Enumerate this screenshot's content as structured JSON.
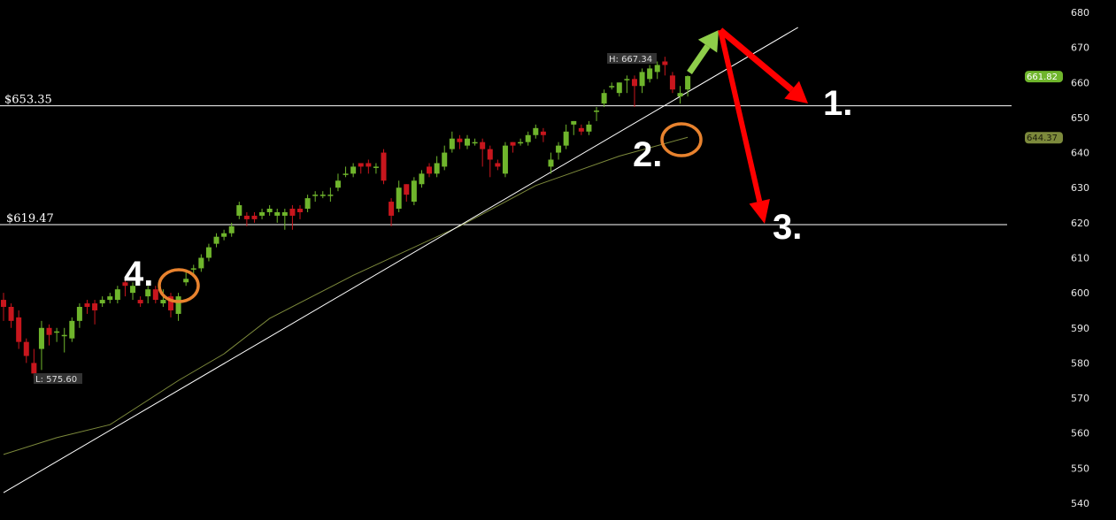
{
  "chart_data": {
    "type": "candlestick",
    "title": "",
    "xlabel": "",
    "ylabel": "",
    "ylim": [
      540,
      680
    ],
    "yticks": [
      680,
      670,
      660,
      650,
      640,
      630,
      620,
      610,
      600,
      590,
      580,
      570,
      560,
      550,
      540
    ],
    "grid": false,
    "up_color": "#6fb52c",
    "down_color": "#c8161d",
    "candles_ohlc": [
      [
        598,
        600,
        592,
        596
      ],
      [
        596,
        597,
        590,
        592
      ],
      [
        593,
        595,
        584,
        586
      ],
      [
        586,
        587,
        580,
        582
      ],
      [
        580,
        584,
        575.6,
        577
      ],
      [
        584,
        592,
        578,
        590
      ],
      [
        590,
        591,
        585,
        588
      ],
      [
        589,
        590,
        586,
        589
      ],
      [
        588,
        590,
        583,
        588
      ],
      [
        587,
        593,
        586,
        592
      ],
      [
        592,
        597,
        590,
        596
      ],
      [
        597,
        598,
        594,
        596
      ],
      [
        597,
        598,
        591,
        595
      ],
      [
        597,
        599,
        596,
        598
      ],
      [
        598,
        600,
        597,
        599
      ],
      [
        598,
        602,
        597,
        601
      ],
      [
        603,
        604,
        599,
        602
      ],
      [
        600,
        603,
        598,
        602
      ],
      [
        598,
        599,
        596,
        597
      ],
      [
        599,
        602,
        597,
        601
      ],
      [
        601,
        602,
        597,
        598
      ],
      [
        597,
        601,
        596,
        598
      ],
      [
        599,
        600,
        593,
        595
      ],
      [
        594,
        600,
        592,
        599
      ],
      [
        603,
        606,
        602,
        604
      ],
      [
        607,
        608,
        605,
        607
      ],
      [
        607,
        611,
        606,
        610
      ],
      [
        610,
        614,
        609,
        613
      ],
      [
        614,
        617,
        613,
        616
      ],
      [
        616,
        618,
        615,
        617
      ],
      [
        617,
        620,
        616,
        619
      ],
      [
        622,
        626,
        621,
        625
      ],
      [
        622,
        623,
        619,
        621
      ],
      [
        622,
        623,
        620,
        621
      ],
      [
        622,
        624,
        621,
        623
      ],
      [
        623,
        625,
        622,
        624
      ],
      [
        622,
        624,
        620,
        623
      ],
      [
        622,
        624,
        618,
        623
      ],
      [
        624,
        625,
        618,
        622
      ],
      [
        624,
        625,
        621,
        623
      ],
      [
        624,
        628,
        623,
        627
      ],
      [
        628,
        629,
        626,
        628
      ],
      [
        628,
        629,
        627,
        628
      ],
      [
        628,
        630,
        626,
        628
      ],
      [
        630,
        634,
        629,
        632
      ],
      [
        634,
        636,
        633,
        634
      ],
      [
        634,
        637,
        633,
        636
      ],
      [
        637,
        637,
        634,
        636
      ],
      [
        637,
        638,
        634,
        636
      ],
      [
        636,
        637,
        634,
        636
      ],
      [
        640,
        641,
        631,
        632
      ],
      [
        626,
        627,
        619,
        622
      ],
      [
        624,
        632,
        623,
        630
      ],
      [
        631,
        631,
        626,
        628
      ],
      [
        626,
        633,
        625,
        632
      ],
      [
        631,
        635,
        630,
        634
      ],
      [
        636,
        637,
        633,
        634
      ],
      [
        634,
        639,
        633,
        637
      ],
      [
        636,
        642,
        635,
        640
      ],
      [
        641,
        646,
        640,
        644
      ],
      [
        644,
        645,
        641,
        643
      ],
      [
        642,
        645,
        641,
        644
      ],
      [
        643,
        644,
        642,
        643
      ],
      [
        643,
        644,
        636,
        641
      ],
      [
        641,
        642,
        633,
        638
      ],
      [
        637,
        638,
        635,
        636
      ],
      [
        634,
        643,
        633,
        642
      ],
      [
        643,
        643,
        640,
        642
      ],
      [
        643,
        644,
        642,
        643
      ],
      [
        643,
        646,
        642,
        645
      ],
      [
        645,
        648,
        644,
        647
      ],
      [
        646,
        647,
        643,
        645
      ],
      [
        636,
        640,
        634,
        638
      ],
      [
        640,
        643,
        638,
        642
      ],
      [
        642,
        648,
        641,
        646
      ],
      [
        648,
        649,
        645,
        649
      ],
      [
        647,
        648,
        645,
        646
      ],
      [
        646,
        649,
        645,
        648
      ],
      [
        652,
        653,
        649,
        652
      ],
      [
        654,
        658,
        653,
        657
      ],
      [
        659,
        660,
        658,
        659
      ],
      [
        657,
        660,
        656,
        660
      ],
      [
        661,
        662,
        657,
        661
      ],
      [
        661,
        662,
        653,
        659
      ],
      [
        659,
        664,
        657,
        663
      ],
      [
        661,
        665,
        660,
        664
      ],
      [
        663,
        666,
        661,
        665
      ],
      [
        666,
        667.34,
        662,
        665
      ],
      [
        662,
        663,
        657,
        658
      ],
      [
        656,
        659,
        654,
        657
      ],
      [
        658,
        662,
        656,
        661.82
      ]
    ],
    "moving_average": {
      "color": "#7d8a3c",
      "points": [
        [
          0,
          553.9
        ],
        [
          7,
          558.7
        ],
        [
          14,
          562.4
        ],
        [
          23,
          575
        ],
        [
          29,
          582.6
        ],
        [
          35,
          592.7
        ],
        [
          46,
          605
        ],
        [
          60,
          619
        ],
        [
          70,
          630.6
        ],
        [
          81,
          639
        ],
        [
          90,
          644.37
        ]
      ]
    },
    "trendline": {
      "color": "#ffffff",
      "points": [
        [
          0,
          543
        ],
        [
          104.5,
          675.7
        ]
      ]
    },
    "horizontal_levels": [
      {
        "value": 653.35,
        "label": "$653.35"
      },
      {
        "value": 619.47,
        "label": "$619.47"
      }
    ],
    "high_marker": {
      "label": "H: 667.34",
      "index": 87
    },
    "low_marker": {
      "label": "L: 575.60",
      "index": 4
    },
    "price_badges": [
      {
        "value": 661.82,
        "label": "661.82",
        "color": "#6fb52c"
      },
      {
        "value": 644.37,
        "label": "644.37",
        "color": "#7d8a3c"
      }
    ],
    "annotations": {
      "labels": [
        "1.",
        "2.",
        "3.",
        "4."
      ],
      "arrow_up_color": "#8fce4a",
      "arrow_down_color": "#ff0000",
      "circle_color": "#e8822e"
    }
  }
}
